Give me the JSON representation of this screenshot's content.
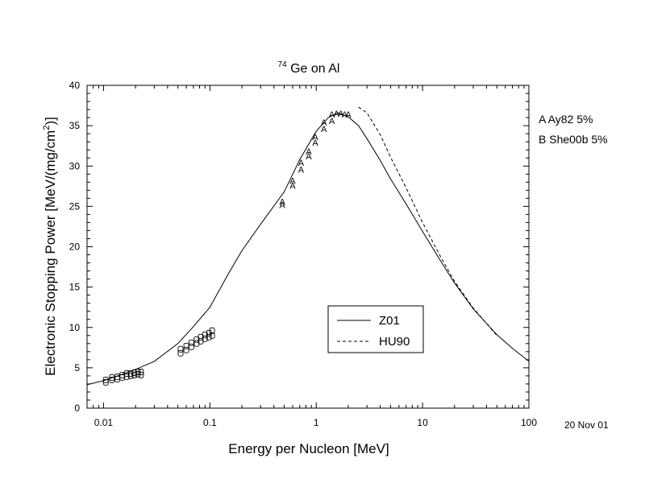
{
  "chart_data": {
    "type": "line",
    "title_superscript": "74",
    "title_main": "Ge on Al",
    "xlabel": "Energy per Nucleon [MeV]",
    "ylabel_main": "Electronic Stopping Power [MeV/(mg/cm",
    "ylabel_sup": "2",
    "ylabel_end": ")]",
    "x_scale": "log",
    "xlim": [
      0.007,
      100
    ],
    "ylim": [
      0,
      40
    ],
    "x_ticks": [
      {
        "value": 0.01,
        "label": "0.01"
      },
      {
        "value": 0.1,
        "label": "0.1"
      },
      {
        "value": 1,
        "label": "1"
      },
      {
        "value": 10,
        "label": "10"
      },
      {
        "value": 100,
        "label": "100"
      }
    ],
    "y_ticks": [
      {
        "value": 0,
        "label": "0"
      },
      {
        "value": 5,
        "label": "5"
      },
      {
        "value": 10,
        "label": "10"
      },
      {
        "value": 15,
        "label": "15"
      },
      {
        "value": 20,
        "label": "20"
      },
      {
        "value": 25,
        "label": "25"
      },
      {
        "value": 30,
        "label": "30"
      },
      {
        "value": 35,
        "label": "35"
      },
      {
        "value": 40,
        "label": "40"
      }
    ],
    "grid": false,
    "legend_position": "center-right",
    "series": [
      {
        "name": "Z01",
        "style": "solid",
        "x": [
          0.007,
          0.01,
          0.015,
          0.02,
          0.03,
          0.05,
          0.07,
          0.1,
          0.15,
          0.2,
          0.3,
          0.5,
          0.7,
          1.0,
          1.3,
          1.6,
          2.0,
          2.5,
          3.0,
          4.0,
          5.0,
          7.0,
          10,
          15,
          20,
          30,
          50,
          70,
          100
        ],
        "y": [
          2.9,
          3.4,
          4.2,
          4.8,
          5.8,
          8.0,
          10.1,
          12.5,
          16.7,
          19.5,
          22.8,
          26.8,
          30.8,
          34.3,
          36.0,
          36.6,
          36.1,
          35.0,
          33.4,
          30.7,
          28.4,
          25.3,
          21.9,
          18.1,
          15.5,
          12.3,
          9.1,
          7.4,
          5.8
        ]
      },
      {
        "name": "HU90",
        "style": "dashed",
        "x": [
          2.5,
          3.0,
          4.0,
          5.0,
          7.0,
          10,
          15,
          20,
          30,
          50
        ],
        "y": [
          37.3,
          36.6,
          33.9,
          31.1,
          27.3,
          23.0,
          18.6,
          15.7,
          12.4,
          9.0
        ]
      }
    ],
    "measured_points": [
      {
        "set": "A",
        "x": 0.48,
        "y": 25.6
      },
      {
        "set": "A",
        "x": 0.48,
        "y": 25.2
      },
      {
        "set": "A",
        "x": 0.6,
        "y": 28.2
      },
      {
        "set": "A",
        "x": 0.6,
        "y": 27.6
      },
      {
        "set": "A",
        "x": 0.72,
        "y": 30.4
      },
      {
        "set": "A",
        "x": 0.72,
        "y": 29.6
      },
      {
        "set": "A",
        "x": 0.85,
        "y": 31.8
      },
      {
        "set": "A",
        "x": 0.85,
        "y": 31.2
      },
      {
        "set": "A",
        "x": 0.98,
        "y": 33.6
      },
      {
        "set": "A",
        "x": 0.98,
        "y": 32.9
      },
      {
        "set": "A",
        "x": 1.18,
        "y": 35.4
      },
      {
        "set": "A",
        "x": 1.18,
        "y": 34.6
      },
      {
        "set": "A",
        "x": 1.4,
        "y": 36.4
      },
      {
        "set": "A",
        "x": 1.4,
        "y": 35.6
      },
      {
        "set": "A",
        "x": 1.55,
        "y": 36.5
      },
      {
        "set": "A",
        "x": 1.7,
        "y": 36.5
      },
      {
        "set": "A",
        "x": 1.85,
        "y": 36.4
      },
      {
        "set": "A",
        "x": 2.0,
        "y": 36.4
      },
      {
        "set": "B",
        "x": 0.0105,
        "y": 3.2
      },
      {
        "set": "B",
        "x": 0.0105,
        "y": 3.5
      },
      {
        "set": "B",
        "x": 0.012,
        "y": 3.5
      },
      {
        "set": "B",
        "x": 0.012,
        "y": 3.8
      },
      {
        "set": "B",
        "x": 0.0135,
        "y": 3.6
      },
      {
        "set": "B",
        "x": 0.0135,
        "y": 3.9
      },
      {
        "set": "B",
        "x": 0.015,
        "y": 3.8
      },
      {
        "set": "B",
        "x": 0.015,
        "y": 4.1
      },
      {
        "set": "B",
        "x": 0.0165,
        "y": 3.9
      },
      {
        "set": "B",
        "x": 0.0165,
        "y": 4.3
      },
      {
        "set": "B",
        "x": 0.018,
        "y": 4.0
      },
      {
        "set": "B",
        "x": 0.018,
        "y": 4.3
      },
      {
        "set": "B",
        "x": 0.0195,
        "y": 4.1
      },
      {
        "set": "B",
        "x": 0.0195,
        "y": 4.4
      },
      {
        "set": "B",
        "x": 0.021,
        "y": 4.2
      },
      {
        "set": "B",
        "x": 0.021,
        "y": 4.5
      },
      {
        "set": "B",
        "x": 0.0225,
        "y": 4.1
      },
      {
        "set": "B",
        "x": 0.0225,
        "y": 4.5
      },
      {
        "set": "B",
        "x": 0.053,
        "y": 6.8
      },
      {
        "set": "B",
        "x": 0.053,
        "y": 7.3
      },
      {
        "set": "B",
        "x": 0.06,
        "y": 7.2
      },
      {
        "set": "B",
        "x": 0.06,
        "y": 7.7
      },
      {
        "set": "B",
        "x": 0.067,
        "y": 7.6
      },
      {
        "set": "B",
        "x": 0.067,
        "y": 8.1
      },
      {
        "set": "B",
        "x": 0.075,
        "y": 8.0
      },
      {
        "set": "B",
        "x": 0.075,
        "y": 8.5
      },
      {
        "set": "B",
        "x": 0.082,
        "y": 8.3
      },
      {
        "set": "B",
        "x": 0.082,
        "y": 8.8
      },
      {
        "set": "B",
        "x": 0.09,
        "y": 8.6
      },
      {
        "set": "B",
        "x": 0.09,
        "y": 9.1
      },
      {
        "set": "B",
        "x": 0.098,
        "y": 8.8
      },
      {
        "set": "B",
        "x": 0.098,
        "y": 9.3
      },
      {
        "set": "B",
        "x": 0.105,
        "y": 9.0
      },
      {
        "set": "B",
        "x": 0.105,
        "y": 9.6
      }
    ],
    "annotations": {
      "dataset_a": "A Ay82  5%",
      "dataset_b": "B She00b 5%",
      "date": "20 Nov 01"
    }
  }
}
